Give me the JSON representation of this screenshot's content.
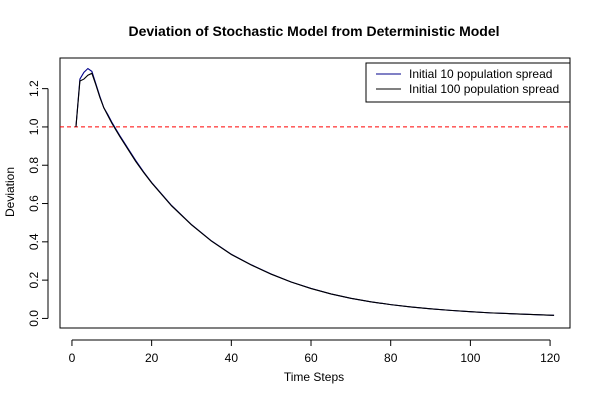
{
  "chart_data": {
    "type": "line",
    "title": "Deviation of Stochastic Model from Deterministic Model",
    "xlabel": "Time Steps",
    "ylabel": "Deviation",
    "xlim": [
      -3,
      125
    ],
    "ylim": [
      -0.05,
      1.36
    ],
    "x_ticks": [
      0,
      20,
      40,
      60,
      80,
      100,
      120
    ],
    "y_ticks": [
      0.0,
      0.2,
      0.4,
      0.6,
      0.8,
      1.0,
      1.2
    ],
    "grid": false,
    "legend_position": "top-right",
    "reference_line": {
      "y": 1.0,
      "color": "#ff0000",
      "style": "dashed"
    },
    "series": [
      {
        "name": "Initial 10 population spread",
        "color": "#00008b",
        "x": [
          1,
          2,
          3,
          4,
          5,
          6,
          7,
          8,
          9,
          10,
          11,
          12,
          14,
          16,
          18,
          20,
          25,
          30,
          35,
          40,
          45,
          50,
          55,
          60,
          65,
          70,
          75,
          80,
          85,
          90,
          95,
          100,
          105,
          110,
          115,
          120,
          121
        ],
        "y": [
          1.0,
          1.25,
          1.285,
          1.305,
          1.29,
          1.225,
          1.16,
          1.1,
          1.065,
          1.025,
          0.99,
          0.955,
          0.89,
          0.825,
          0.765,
          0.71,
          0.59,
          0.49,
          0.405,
          0.335,
          0.28,
          0.232,
          0.19,
          0.157,
          0.128,
          0.105,
          0.087,
          0.072,
          0.06,
          0.05,
          0.042,
          0.035,
          0.029,
          0.025,
          0.021,
          0.017,
          0.016
        ]
      },
      {
        "name": "Initial 100 population spread",
        "color": "#000000",
        "x": [
          1,
          2,
          3,
          4,
          5,
          6,
          7,
          8,
          9,
          10,
          11,
          12,
          14,
          16,
          18,
          20,
          25,
          30,
          35,
          40,
          45,
          50,
          55,
          60,
          65,
          70,
          75,
          80,
          85,
          90,
          95,
          100,
          105,
          110,
          115,
          120,
          121
        ],
        "y": [
          1.0,
          1.24,
          1.25,
          1.27,
          1.28,
          1.22,
          1.155,
          1.1,
          1.06,
          1.02,
          0.985,
          0.95,
          0.885,
          0.82,
          0.762,
          0.708,
          0.588,
          0.489,
          0.404,
          0.334,
          0.279,
          0.231,
          0.19,
          0.156,
          0.128,
          0.105,
          0.087,
          0.072,
          0.06,
          0.05,
          0.042,
          0.035,
          0.029,
          0.025,
          0.021,
          0.017,
          0.016
        ]
      }
    ]
  }
}
